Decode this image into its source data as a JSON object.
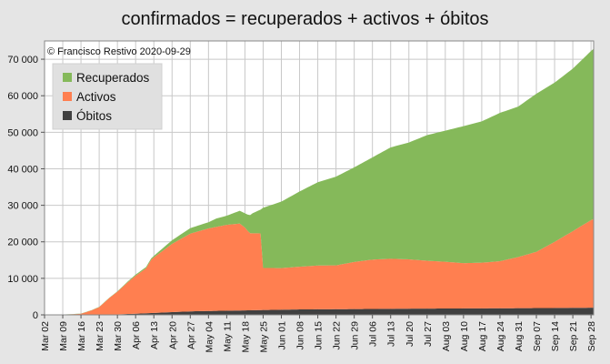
{
  "chart_data": {
    "type": "area",
    "title": "confirmados = recuperados + activos + óbitos",
    "annotation": "© Francisco Restivo 2020-09-29",
    "ylim": [
      0,
      75000
    ],
    "y_ticks": [
      0,
      10000,
      20000,
      30000,
      40000,
      50000,
      60000,
      70000
    ],
    "y_tick_labels": [
      "0",
      "10 000",
      "20 000",
      "30 000",
      "40 000",
      "50 000",
      "60 000",
      "70 000"
    ],
    "x_start": "2020-03-02",
    "x_end": "2020-09-29",
    "x_tick_labels": [
      "Mar 02",
      "Mar 09",
      "Mar 16",
      "Mar 23",
      "Mar 30",
      "Apr 06",
      "Apr 13",
      "Apr 20",
      "Apr 27",
      "May 04",
      "May 11",
      "May 18",
      "May 25",
      "Jun 01",
      "Jun 08",
      "Jun 15",
      "Jun 22",
      "Jun 29",
      "Jul 06",
      "Jul 13",
      "Jul 20",
      "Jul 27",
      "Aug 03",
      "Aug 10",
      "Aug 17",
      "Aug 24",
      "Aug 31",
      "Sep 07",
      "Sep 14",
      "Sep 21",
      "Sep 28"
    ],
    "grid": true,
    "legend_position": "top-left",
    "stacking": "stacked",
    "series": [
      {
        "name": "Óbitos",
        "color": "#404040",
        "points": [
          [
            "2020-03-02",
            0
          ],
          [
            "2020-03-16",
            0
          ],
          [
            "2020-03-23",
            20
          ],
          [
            "2020-03-30",
            140
          ],
          [
            "2020-04-06",
            311
          ],
          [
            "2020-04-13",
            535
          ],
          [
            "2020-04-20",
            735
          ],
          [
            "2020-04-27",
            948
          ],
          [
            "2020-05-04",
            1063
          ],
          [
            "2020-05-11",
            1144
          ],
          [
            "2020-05-18",
            1218
          ],
          [
            "2020-05-25",
            1330
          ],
          [
            "2020-06-08",
            1485
          ],
          [
            "2020-06-22",
            1549
          ],
          [
            "2020-07-06",
            1620
          ],
          [
            "2020-07-20",
            1697
          ],
          [
            "2020-08-03",
            1740
          ],
          [
            "2020-08-17",
            1784
          ],
          [
            "2020-08-31",
            1827
          ],
          [
            "2020-09-14",
            1888
          ],
          [
            "2020-09-28",
            1953
          ],
          [
            "2020-09-29",
            1963
          ]
        ]
      },
      {
        "name": "Activos",
        "color": "#ff7f50",
        "points": [
          [
            "2020-03-02",
            0
          ],
          [
            "2020-03-09",
            50
          ],
          [
            "2020-03-16",
            300
          ],
          [
            "2020-03-20",
            1200
          ],
          [
            "2020-03-23",
            2100
          ],
          [
            "2020-03-27",
            4600
          ],
          [
            "2020-03-30",
            6200
          ],
          [
            "2020-04-03",
            8700
          ],
          [
            "2020-04-06",
            10400
          ],
          [
            "2020-04-10",
            12300
          ],
          [
            "2020-04-12",
            14600
          ],
          [
            "2020-04-13",
            15200
          ],
          [
            "2020-04-20",
            18700
          ],
          [
            "2020-04-27",
            21300
          ],
          [
            "2020-05-04",
            22600
          ],
          [
            "2020-05-11",
            23500
          ],
          [
            "2020-05-16",
            23800
          ],
          [
            "2020-05-18",
            22700
          ],
          [
            "2020-05-19",
            21800
          ],
          [
            "2020-05-20",
            21100
          ],
          [
            "2020-05-24",
            21000
          ],
          [
            "2020-05-25",
            11500
          ],
          [
            "2020-06-01",
            11400
          ],
          [
            "2020-06-08",
            11700
          ],
          [
            "2020-06-15",
            12000
          ],
          [
            "2020-06-22",
            12000
          ],
          [
            "2020-06-29",
            12900
          ],
          [
            "2020-07-06",
            13500
          ],
          [
            "2020-07-13",
            13700
          ],
          [
            "2020-07-20",
            13500
          ],
          [
            "2020-07-27",
            13100
          ],
          [
            "2020-08-03",
            12800
          ],
          [
            "2020-08-10",
            12400
          ],
          [
            "2020-08-17",
            12500
          ],
          [
            "2020-08-24",
            12900
          ],
          [
            "2020-08-31",
            14000
          ],
          [
            "2020-09-07",
            15400
          ],
          [
            "2020-09-14",
            18100
          ],
          [
            "2020-09-21",
            21000
          ],
          [
            "2020-09-28",
            24000
          ],
          [
            "2020-09-29",
            24300
          ]
        ]
      },
      {
        "name": "Recuperados",
        "color": "#85b95a",
        "points": [
          [
            "2020-03-02",
            0
          ],
          [
            "2020-03-30",
            100
          ],
          [
            "2020-04-06",
            300
          ],
          [
            "2020-04-13",
            400
          ],
          [
            "2020-04-20",
            1000
          ],
          [
            "2020-04-27",
            1500
          ],
          [
            "2020-05-04",
            1700
          ],
          [
            "2020-05-07",
            2300
          ],
          [
            "2020-05-11",
            2500
          ],
          [
            "2020-05-18",
            3900
          ],
          [
            "2020-05-21",
            5500
          ],
          [
            "2020-05-24",
            6500
          ],
          [
            "2020-05-25",
            16500
          ],
          [
            "2020-06-01",
            18200
          ],
          [
            "2020-06-08",
            20600
          ],
          [
            "2020-06-15",
            22800
          ],
          [
            "2020-06-22",
            24300
          ],
          [
            "2020-06-29",
            25900
          ],
          [
            "2020-07-06",
            28000
          ],
          [
            "2020-07-13",
            30500
          ],
          [
            "2020-07-20",
            32000
          ],
          [
            "2020-07-27",
            34400
          ],
          [
            "2020-08-03",
            35900
          ],
          [
            "2020-08-10",
            37500
          ],
          [
            "2020-08-17",
            38700
          ],
          [
            "2020-08-24",
            40600
          ],
          [
            "2020-08-31",
            41200
          ],
          [
            "2020-09-07",
            43300
          ],
          [
            "2020-09-14",
            43600
          ],
          [
            "2020-09-21",
            44500
          ],
          [
            "2020-09-28",
            46300
          ],
          [
            "2020-09-29",
            46600
          ]
        ]
      }
    ]
  }
}
